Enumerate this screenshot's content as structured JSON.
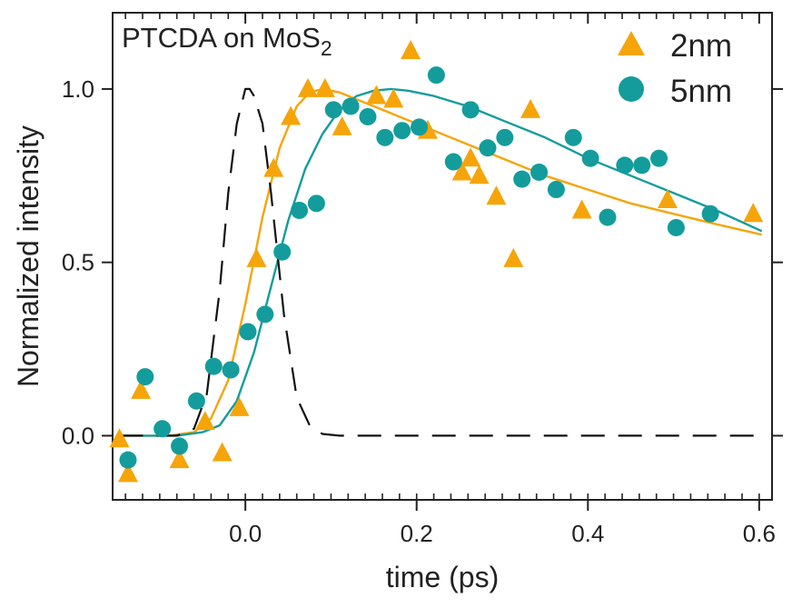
{
  "chart_data": {
    "type": "scatter",
    "title": "PTCDA on MoS",
    "title_subscript": "2",
    "xlabel": "time (ps)",
    "ylabel": "Normalized intensity",
    "xlim": [
      -0.155,
      0.615
    ],
    "ylim": [
      -0.185,
      1.22
    ],
    "x_ticks": [
      0.0,
      0.2,
      0.4,
      0.6
    ],
    "x_tick_labels": [
      "0.0",
      "0.2",
      "0.4",
      "0.6"
    ],
    "x_minor_step": 0.02,
    "y_ticks": [
      0.0,
      0.5,
      1.0
    ],
    "y_tick_labels": [
      "0.0",
      "0.5",
      "1.0"
    ],
    "grid": false,
    "legend_position": "top-right",
    "colors": {
      "2nm": "#F5A50A",
      "5nm": "#149C9C",
      "pulse": "#111111",
      "axes": "#222222"
    },
    "series": [
      {
        "name": "2nm",
        "marker": "triangle",
        "points": [
          [
            -0.147,
            -0.01
          ],
          [
            -0.137,
            -0.11
          ],
          [
            -0.122,
            0.13
          ],
          [
            -0.077,
            -0.07
          ],
          [
            -0.047,
            0.04
          ],
          [
            -0.027,
            -0.05
          ],
          [
            -0.007,
            0.08
          ],
          [
            0.013,
            0.51
          ],
          [
            0.033,
            0.77
          ],
          [
            0.053,
            0.92
          ],
          [
            0.073,
            1.0
          ],
          [
            0.093,
            1.0
          ],
          [
            0.113,
            0.89
          ],
          [
            0.153,
            0.98
          ],
          [
            0.173,
            0.97
          ],
          [
            0.193,
            1.11
          ],
          [
            0.213,
            0.88
          ],
          [
            0.253,
            0.76
          ],
          [
            0.263,
            0.8
          ],
          [
            0.273,
            0.75
          ],
          [
            0.293,
            0.69
          ],
          [
            0.313,
            0.51
          ],
          [
            0.333,
            0.94
          ],
          [
            0.393,
            0.65
          ],
          [
            0.493,
            0.68
          ],
          [
            0.593,
            0.64
          ]
        ]
      },
      {
        "name": "5nm",
        "marker": "circle",
        "points": [
          [
            -0.137,
            -0.07
          ],
          [
            -0.117,
            0.17
          ],
          [
            -0.097,
            0.02
          ],
          [
            -0.077,
            -0.03
          ],
          [
            -0.057,
            0.1
          ],
          [
            -0.037,
            0.2
          ],
          [
            -0.017,
            0.19
          ],
          [
            0.003,
            0.3
          ],
          [
            0.023,
            0.35
          ],
          [
            0.043,
            0.53
          ],
          [
            0.063,
            0.65
          ],
          [
            0.083,
            0.67
          ],
          [
            0.103,
            0.94
          ],
          [
            0.123,
            0.95
          ],
          [
            0.143,
            0.92
          ],
          [
            0.163,
            0.86
          ],
          [
            0.183,
            0.88
          ],
          [
            0.203,
            0.89
          ],
          [
            0.223,
            1.04
          ],
          [
            0.243,
            0.79
          ],
          [
            0.263,
            0.94
          ],
          [
            0.283,
            0.83
          ],
          [
            0.303,
            0.86
          ],
          [
            0.323,
            0.74
          ],
          [
            0.343,
            0.76
          ],
          [
            0.363,
            0.71
          ],
          [
            0.383,
            0.86
          ],
          [
            0.403,
            0.8
          ],
          [
            0.423,
            0.63
          ],
          [
            0.443,
            0.78
          ],
          [
            0.463,
            0.78
          ],
          [
            0.483,
            0.8
          ],
          [
            0.503,
            0.6
          ],
          [
            0.543,
            0.64
          ]
        ]
      },
      {
        "name": "2nm fit",
        "type": "line",
        "x": [
          -0.147,
          -0.09,
          -0.06,
          -0.04,
          -0.02,
          0.0,
          0.02,
          0.04,
          0.06,
          0.075,
          0.09,
          0.11,
          0.13,
          0.16,
          0.2,
          0.25,
          0.3,
          0.35,
          0.4,
          0.45,
          0.5,
          0.55,
          0.603
        ],
        "y": [
          0.0,
          0.0,
          0.01,
          0.05,
          0.16,
          0.38,
          0.63,
          0.83,
          0.95,
          0.99,
          1.0,
          0.99,
          0.97,
          0.94,
          0.9,
          0.85,
          0.8,
          0.75,
          0.71,
          0.67,
          0.64,
          0.61,
          0.58
        ]
      },
      {
        "name": "5nm fit",
        "type": "line",
        "x": [
          -0.147,
          -0.08,
          -0.05,
          -0.03,
          -0.01,
          0.01,
          0.03,
          0.05,
          0.07,
          0.09,
          0.11,
          0.13,
          0.15,
          0.17,
          0.19,
          0.22,
          0.26,
          0.3,
          0.35,
          0.4,
          0.45,
          0.5,
          0.55,
          0.603
        ],
        "y": [
          0.0,
          0.0,
          0.01,
          0.03,
          0.1,
          0.24,
          0.43,
          0.62,
          0.77,
          0.87,
          0.94,
          0.98,
          0.995,
          1.0,
          0.995,
          0.98,
          0.95,
          0.91,
          0.86,
          0.8,
          0.75,
          0.7,
          0.65,
          0.59
        ]
      },
      {
        "name": "pulse",
        "type": "line",
        "dashed": true,
        "x": [
          -0.147,
          -0.08,
          -0.06,
          -0.045,
          -0.03,
          -0.02,
          -0.01,
          0.0,
          0.005,
          0.01,
          0.02,
          0.03,
          0.045,
          0.06,
          0.075,
          0.09,
          0.11,
          0.2,
          0.3,
          0.4,
          0.5,
          0.603
        ],
        "y": [
          0.0,
          0.0,
          0.02,
          0.12,
          0.42,
          0.7,
          0.9,
          1.0,
          1.0,
          0.98,
          0.9,
          0.7,
          0.35,
          0.11,
          0.03,
          0.005,
          0.0,
          0.0,
          0.0,
          0.0,
          0.0,
          0.0
        ]
      }
    ]
  }
}
